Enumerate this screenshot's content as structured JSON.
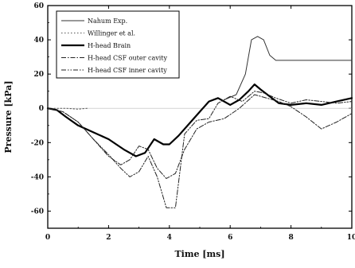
{
  "chart_data": {
    "type": "line",
    "title": "",
    "xlabel": "Time [ms]",
    "ylabel": "Pressure [kPa]",
    "xlim": [
      0,
      10
    ],
    "ylim": [
      -70,
      60
    ],
    "xticks": [
      "0",
      "2",
      "4",
      "6",
      "8",
      "10"
    ],
    "yticks": [
      "60",
      "40",
      "20",
      "0",
      "-20",
      "-40",
      "-60"
    ],
    "grid": false,
    "legend_position": "top-left",
    "series": [
      {
        "name": "Nahum Exp.",
        "style": "solid-thin",
        "color": "#333333",
        "x": [
          5.8,
          6.2,
          6.5,
          6.7,
          6.9,
          7.1,
          7.3,
          7.5,
          8.0,
          9.0,
          10.0
        ],
        "y": [
          5,
          8,
          20,
          40,
          42,
          40,
          31,
          28,
          28,
          28,
          28
        ]
      },
      {
        "name": "Willinger et al.",
        "style": "dotted",
        "color": "#555555",
        "x": [
          0,
          0.3,
          0.6,
          1.0,
          1.3
        ],
        "y": [
          0,
          0,
          0,
          -0.5,
          0
        ]
      },
      {
        "name": "H-head Brain",
        "style": "solid-bold",
        "color": "#000000",
        "x": [
          0,
          0.3,
          0.6,
          1.0,
          1.5,
          2.0,
          2.5,
          2.9,
          3.2,
          3.5,
          3.8,
          4.0,
          4.3,
          4.7,
          5.0,
          5.3,
          5.6,
          6.0,
          6.3,
          6.6,
          6.8,
          7.0,
          7.3,
          7.6,
          8.0,
          8.5,
          9.0,
          9.5,
          10.0
        ],
        "y": [
          0,
          -1,
          -5,
          -10,
          -14,
          -18,
          -24,
          -28,
          -26,
          -18,
          -21,
          -21,
          -16,
          -8,
          -2,
          4,
          6,
          2,
          5,
          10,
          14,
          11,
          7,
          3,
          2,
          3,
          2,
          4,
          6
        ]
      },
      {
        "name": "H-head CSF outer cavity",
        "style": "dash-dot",
        "color": "#222222",
        "x": [
          0,
          0.5,
          1.0,
          1.5,
          2.0,
          2.4,
          2.7,
          3.0,
          3.3,
          3.6,
          3.9,
          4.2,
          4.5,
          4.9,
          5.3,
          5.8,
          6.3,
          6.8,
          7.2,
          7.6,
          8.0,
          8.5,
          9.0,
          9.5,
          10.0
        ],
        "y": [
          0,
          -2,
          -8,
          -18,
          -28,
          -33,
          -30,
          -22,
          -24,
          -35,
          -41,
          -38,
          -24,
          -12,
          -8,
          -6,
          0,
          8,
          6,
          4,
          1,
          -5,
          -12,
          -8,
          -3
        ]
      },
      {
        "name": "H-head CSF inner cavity",
        "style": "dash-dot-dot",
        "color": "#222222",
        "x": [
          0,
          0.5,
          1.0,
          1.5,
          2.0,
          2.4,
          2.7,
          3.0,
          3.3,
          3.6,
          3.9,
          4.2,
          4.5,
          4.9,
          5.3,
          5.6,
          6.0,
          6.4,
          6.8,
          7.1,
          7.5,
          8.0,
          8.5,
          9.0,
          9.5,
          10.0
        ],
        "y": [
          0,
          -2,
          -8,
          -18,
          -27,
          -35,
          -40,
          -37,
          -28,
          -40,
          -58,
          -58,
          -15,
          -7,
          -6,
          3,
          7,
          4,
          10,
          9,
          6,
          3,
          5,
          4,
          3,
          4
        ]
      }
    ]
  }
}
